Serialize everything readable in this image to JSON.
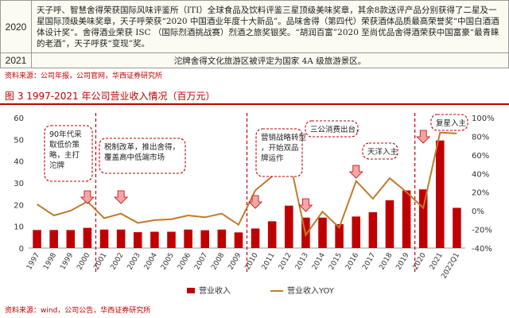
{
  "table": {
    "row1_year": "2020",
    "row1_text": "天子呼、智慧舍得荣获国际风味评鉴所（ITI）全球食品及饮料评鉴三星顶级美味奖章，其余8款送评产品分别获得了二星及一星国际顶级美味奖章，天子呼荣获“2020 中国酒业年度十大新品”。品味舍得（第四代）荣获酒体品质最高荣誉奖“中国白酒酒体设计奖”。舍得酒业荣获 ISC （国际烈酒挑战赛）烈酒之旅奖银奖。“胡润百富”2020 至尚优品舍得酒荣获中国富豪“最青睐的老酒”，天子呼获“变现”奖。",
    "row2_year": "2021",
    "row2_text": "沱牌舍得文化旅游区被评定为国家 4A 级旅游景区。"
  },
  "source_top": "资料来源：公司年报，公司官网，华西证券研究所",
  "figure_title": "图 3 1997-2021 年公司营业收入情况（百万元）",
  "source_bottom": "资料来源：wind，公司公告，华西证券研究所",
  "annotations": [
    "90年代采取低价策略，主打沱牌",
    "税制改革，推出舍得，覆盖高中低端市场",
    "营销战略转型，开始双品牌运作",
    "三公消费出台，",
    "天洋入主",
    "复星入主"
  ],
  "colors": {
    "bar": "#c00000",
    "line": "#c07b2a",
    "accent": "#c00000",
    "divider": "#c00000"
  },
  "chart_data": {
    "type": "bar",
    "categories": [
      "1997",
      "1998",
      "1999",
      "2000",
      "2001",
      "2002",
      "2003",
      "2004",
      "2005",
      "2006",
      "2007",
      "2008",
      "2009",
      "2010",
      "2011",
      "2012",
      "2013",
      "2014",
      "2015",
      "2016",
      "2017",
      "2018",
      "2019",
      "2020",
      "2021",
      "2022Q1"
    ],
    "series": [
      {
        "name": "营业收入",
        "type": "bar",
        "axis": "left",
        "values": [
          8.3,
          8.3,
          8.3,
          9.3,
          8.5,
          8.5,
          7.3,
          7.5,
          7.5,
          8.5,
          8.2,
          8.5,
          7.2,
          9.0,
          12.3,
          19.5,
          14.0,
          14.0,
          11.0,
          14.5,
          16.5,
          22.0,
          26.5,
          27.0,
          49.5,
          18.5
        ]
      },
      {
        "name": "营业收入YOY",
        "type": "line",
        "axis": "right",
        "values": [
          7,
          -5,
          0,
          10,
          -8,
          -3,
          -13,
          -10,
          -9,
          -5,
          -7,
          -3,
          -15,
          22,
          37,
          58,
          -26,
          -1,
          -18,
          32,
          13,
          35,
          20,
          3,
          84,
          83
        ]
      }
    ],
    "ylim": [
      0,
      60
    ],
    "y2lim": [
      -40,
      100
    ],
    "yticks": [
      0,
      10,
      20,
      30,
      40,
      50,
      60
    ],
    "y2ticks": [
      "-40%",
      "-20%",
      "0%",
      "20%",
      "40%",
      "60%",
      "80%",
      "100%"
    ],
    "xlabel": "",
    "ylabel": "",
    "legend": "bottom-center",
    "grid": false
  }
}
